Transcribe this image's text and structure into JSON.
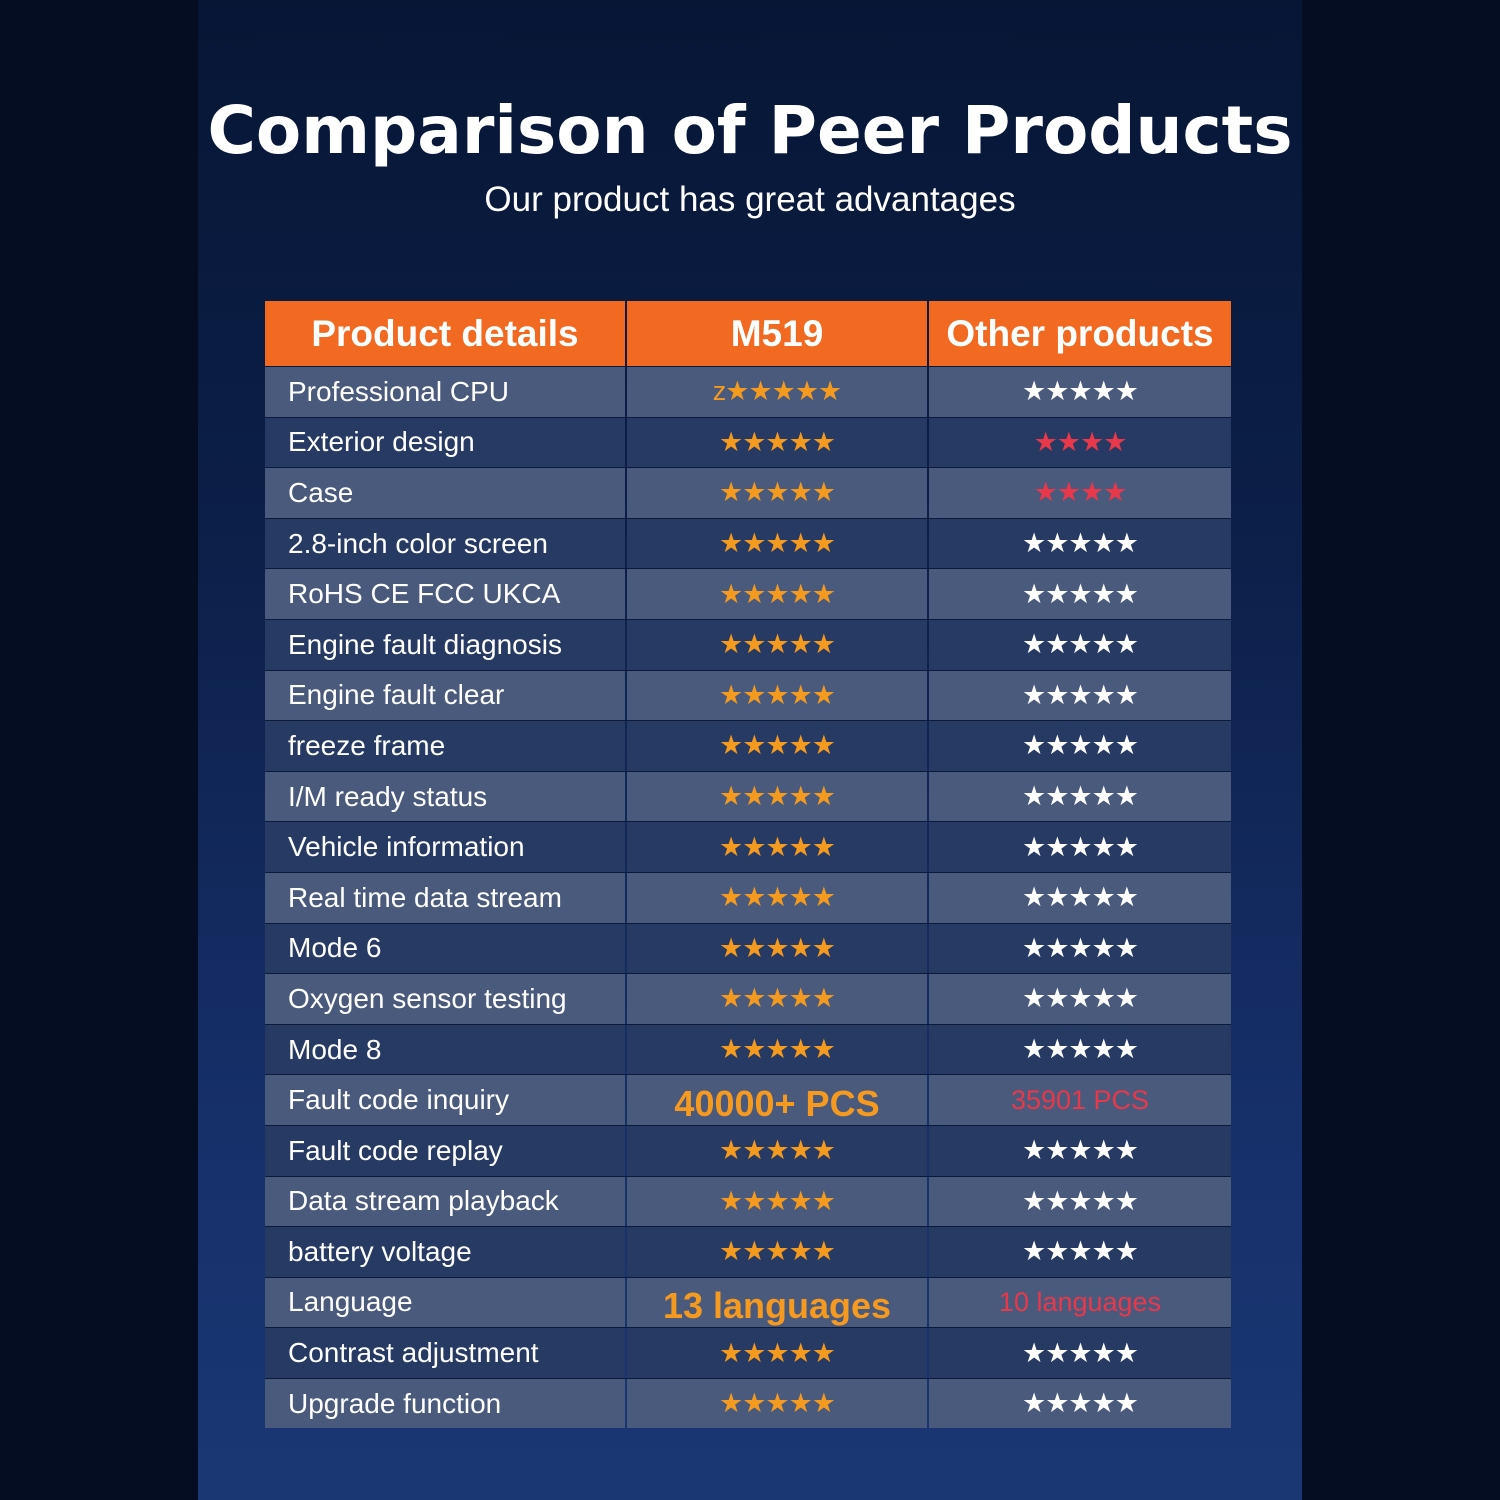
{
  "title": "Comparison of Peer Products",
  "subtitle": "Our product has great advantages",
  "headers": {
    "feature": "Product details",
    "ours": "M519",
    "others": "Other products"
  },
  "colors": {
    "accent": "#f26a21",
    "star_orange": "#f39a1f",
    "star_red": "#e8384a",
    "star_white": "#ffffff"
  },
  "rows": [
    {
      "feature": "Professional CPU",
      "ours": "z★★★★★",
      "ours_style": "stars",
      "others": "★★★★★",
      "others_style": "white"
    },
    {
      "feature": "Exterior design",
      "ours": "★★★★★",
      "ours_style": "stars",
      "others": "★★★★",
      "others_style": "red"
    },
    {
      "feature": "Case",
      "ours": "★★★★★",
      "ours_style": "stars",
      "others": "★★★★",
      "others_style": "red"
    },
    {
      "feature": "2.8-inch color screen",
      "ours": "★★★★★",
      "ours_style": "stars",
      "others": "★★★★★",
      "others_style": "white"
    },
    {
      "feature": "RoHS CE FCC UKCA",
      "ours": "★★★★★",
      "ours_style": "stars",
      "others": "★★★★★",
      "others_style": "white"
    },
    {
      "feature": "Engine fault diagnosis",
      "ours": "★★★★★",
      "ours_style": "stars",
      "others": "★★★★★",
      "others_style": "white"
    },
    {
      "feature": "Engine fault clear",
      "ours": "★★★★★",
      "ours_style": "stars",
      "others": "★★★★★",
      "others_style": "white"
    },
    {
      "feature": "freeze frame",
      "ours": "★★★★★",
      "ours_style": "stars",
      "others": "★★★★★",
      "others_style": "white"
    },
    {
      "feature": "I/M ready status",
      "ours": "★★★★★",
      "ours_style": "stars",
      "others": "★★★★★",
      "others_style": "white"
    },
    {
      "feature": "Vehicle information",
      "ours": "★★★★★",
      "ours_style": "stars",
      "others": "★★★★★",
      "others_style": "white"
    },
    {
      "feature": "Real time data stream",
      "ours": "★★★★★",
      "ours_style": "stars",
      "others": "★★★★★",
      "others_style": "white"
    },
    {
      "feature": "Mode 6",
      "ours": "★★★★★",
      "ours_style": "stars",
      "others": "★★★★★",
      "others_style": "white"
    },
    {
      "feature": "Oxygen sensor testing",
      "ours": "★★★★★",
      "ours_style": "stars",
      "others": "★★★★★",
      "others_style": "white"
    },
    {
      "feature": "Mode 8",
      "ours": "★★★★★",
      "ours_style": "stars",
      "others": "★★★★★",
      "others_style": "white"
    },
    {
      "feature": "Fault code inquiry",
      "ours": "40000+ PCS",
      "ours_style": "big",
      "others": "35901 PCS",
      "others_style": "redtext"
    },
    {
      "feature": "Fault code replay",
      "ours": "★★★★★",
      "ours_style": "stars",
      "others": "★★★★★",
      "others_style": "white"
    },
    {
      "feature": "Data stream playback",
      "ours": "★★★★★",
      "ours_style": "stars",
      "others": "★★★★★",
      "others_style": "white"
    },
    {
      "feature": "battery voltage",
      "ours": "★★★★★",
      "ours_style": "stars",
      "others": "★★★★★",
      "others_style": "white"
    },
    {
      "feature": "Language",
      "ours": "13 languages",
      "ours_style": "big",
      "others": "10 languages",
      "others_style": "redtext"
    },
    {
      "feature": "Contrast adjustment",
      "ours": "★★★★★",
      "ours_style": "stars",
      "others": "★★★★★",
      "others_style": "white"
    },
    {
      "feature": "Upgrade function",
      "ours": "★★★★★",
      "ours_style": "stars",
      "others": "★★★★★",
      "others_style": "white"
    }
  ]
}
